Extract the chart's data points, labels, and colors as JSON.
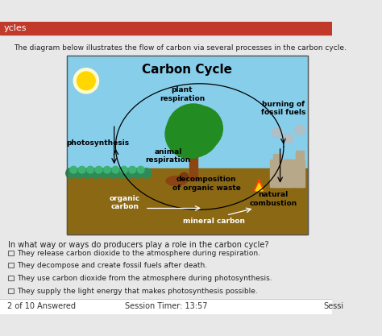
{
  "bg_color": "#e8e8e8",
  "header_color": "#c0392b",
  "title_text": "ycles",
  "intro_text": "The diagram below illustrates the flow of carbon via several processes in the carbon cycle.",
  "diagram_title": "Carbon Cycle",
  "diagram_bg_sky": "#87CEEB",
  "diagram_bg_ground": "#8B6914",
  "diagram_labels": {
    "plant_respiration": "plant\nrespiration",
    "burning_fossil": "burning of\nfossil fuels",
    "photosynthesis": "photosynthesis",
    "animal_respiration": "animal\nrespiration",
    "decomposition": "decomposition\nof organic waste",
    "organic_carbon": "organic\ncarbon",
    "natural_combustion": "natural\ncombustion",
    "mineral_carbon": "mineral carbon"
  },
  "question_text": "In what way or ways do producers play a role in the carbon cycle?",
  "options": [
    "They release carbon dioxide to the atmosphere during respiration.",
    "They decompose and create fossil fuels after death.",
    "They use carbon dioxide from the atmosphere during photosynthesis.",
    "They supply the light energy that makes photosynthesis possible."
  ],
  "footer_left": "2 of 10 Answered",
  "footer_center": "Session Timer: 13:57",
  "footer_right": "Sessi",
  "footer_bg": "#ffffff"
}
